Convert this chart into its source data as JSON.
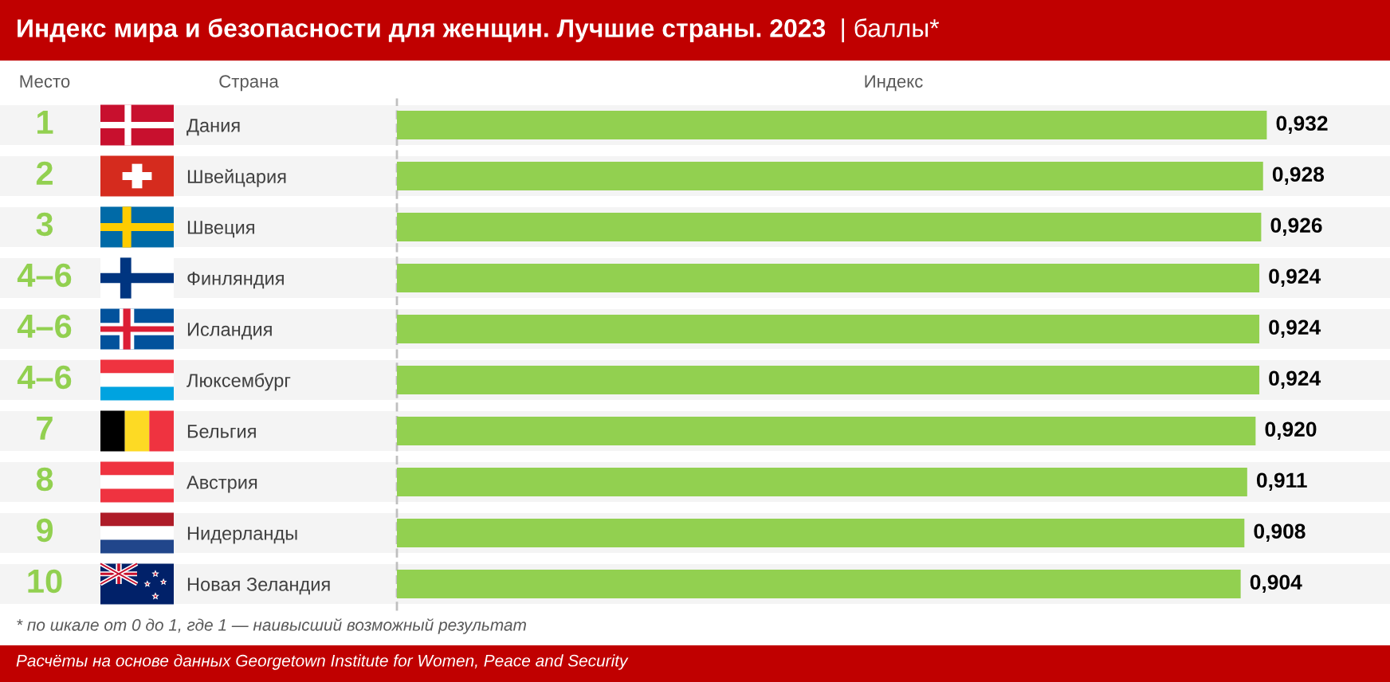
{
  "chart_data": {
    "type": "bar",
    "orientation": "horizontal",
    "title": "Индекс мира и безопасности для женщин. Лучшие страны. 2023",
    "subtitle": "| баллы*",
    "xlabel": "Индекс",
    "categories": [
      "Дания",
      "Швейцария",
      "Швеция",
      "Финляндия",
      "Исландия",
      "Люксембург",
      "Бельгия",
      "Австрия",
      "Нидерланды",
      "Новая Зеландия"
    ],
    "values": [
      0.932,
      0.928,
      0.926,
      0.924,
      0.924,
      0.924,
      0.92,
      0.911,
      0.908,
      0.904
    ],
    "value_labels": [
      "0,932",
      "0,928",
      "0,926",
      "0,924",
      "0,924",
      "0,924",
      "0,920",
      "0,911",
      "0,908",
      "0,904"
    ],
    "color": "#92d050",
    "xlim": [
      0,
      1.064
    ],
    "tick_labels": "y",
    "grid": "y",
    "annotations": [
      "Место",
      "Страна",
      "1",
      "2",
      "3",
      "4–6",
      "4–6",
      "4–6",
      "7",
      "8",
      "9",
      "10",
      "* по шкале от 0 до 1, где 1 — наивысший возможный результат",
      "Расчёты на основе данных Georgetown Institute for Women, Peace and Security"
    ]
  }
}
